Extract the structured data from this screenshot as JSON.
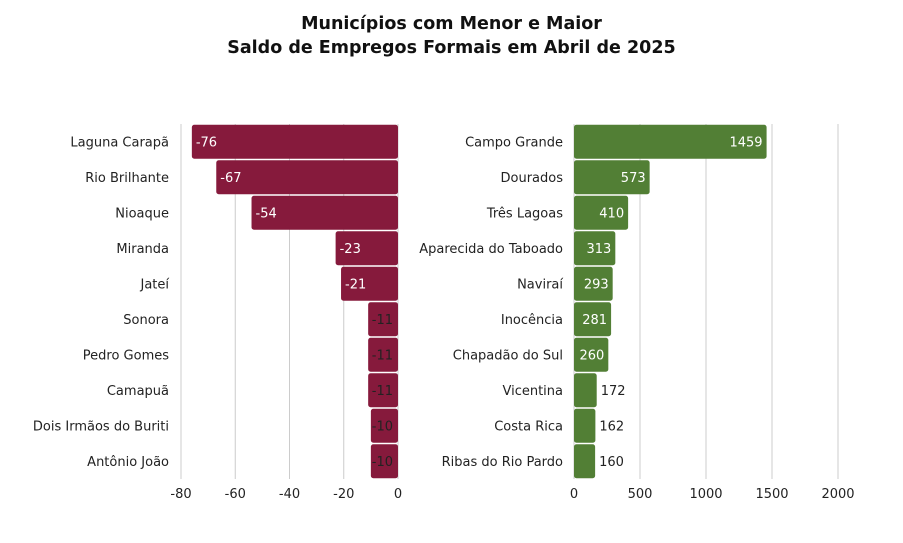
{
  "title": {
    "line1": "Municípios com Menor e Maior",
    "line2": "Saldo de Empregos Formais em Abril de 2025"
  },
  "colors": {
    "negative": "#861a3c",
    "positive": "#527f35"
  },
  "chart_data": [
    {
      "type": "bar",
      "orientation": "horizontal",
      "categories": [
        "Laguna Carapã",
        "Rio Brilhante",
        "Nioaque",
        "Miranda",
        "Jateí",
        "Sonora",
        "Pedro Gomes",
        "Camapuã",
        "Dois Irmãos do Buriti",
        "Antônio João"
      ],
      "values": [
        -76,
        -67,
        -54,
        -23,
        -21,
        -11,
        -11,
        -11,
        -10,
        -10
      ],
      "xlim": [
        -80,
        0
      ],
      "xticks": [
        -80,
        -60,
        -40,
        -20,
        0
      ],
      "grid": true
    },
    {
      "type": "bar",
      "orientation": "horizontal",
      "categories": [
        "Campo Grande",
        "Dourados",
        "Três Lagoas",
        "Aparecida do Taboado",
        "Naviraí",
        "Inocência",
        "Chapadão do Sul",
        "Vicentina",
        "Costa Rica",
        "Ribas do Rio Pardo"
      ],
      "values": [
        1459,
        573,
        410,
        313,
        293,
        281,
        260,
        172,
        162,
        160
      ],
      "xlim": [
        0,
        2000
      ],
      "xticks": [
        0,
        500,
        1000,
        1500,
        2000
      ],
      "grid": true
    }
  ]
}
